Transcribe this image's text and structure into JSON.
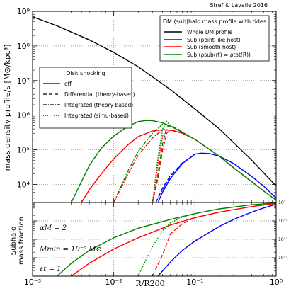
{
  "credit": "Stref & Lavalle 2016",
  "chart_data": {
    "type": "line",
    "top_panel": {
      "ylabel": "mass density profile/s [M⊙/kpc³]",
      "yscale": "log",
      "ylim": [
        3000,
        1000000000
      ],
      "yticks": [
        "10⁴",
        "10⁵",
        "10⁶",
        "10⁷",
        "10⁸",
        "10⁹"
      ],
      "yticks_values": [
        10000,
        100000,
        1000000,
        10000000,
        100000000,
        1000000000
      ],
      "legend_tides": {
        "title": "DM (sub)halo mass profile with tides",
        "entries": [
          {
            "label": "Whole DM profile",
            "color": "#000000"
          },
          {
            "label": "Sub (point-like host)",
            "color": "#0000ff"
          },
          {
            "label": "Sub (smooth host)",
            "color": "#ff0000"
          },
          {
            "label": "Sub (ρsub(rt) = ρtot(R))",
            "color": "#008000"
          }
        ]
      },
      "legend_disk": {
        "title": "Disk shocking",
        "entries": [
          {
            "label": "off",
            "dash": "solid"
          },
          {
            "label": "Differential (theory-based)",
            "dash": "dashed"
          },
          {
            "label": "Integrated (theory-based)",
            "dash": "dashdot"
          },
          {
            "label": "Integrated (simu-based)",
            "dash": "dotted"
          }
        ]
      },
      "series": [
        {
          "name": "Whole DM profile",
          "color": "#000000",
          "dash": "solid",
          "x": [
            0.001,
            0.002,
            0.005,
            0.01,
            0.02,
            0.05,
            0.1,
            0.2,
            0.5,
            1.0
          ],
          "y": [
            700000000,
            380000000,
            150000000,
            65000000,
            25000000,
            5500000,
            1500000,
            400000,
            50000,
            9000
          ]
        },
        {
          "name": "Sub (point-like host)",
          "color": "#0000ff",
          "dash": "solid",
          "x": [
            0.035,
            0.04,
            0.05,
            0.07,
            0.1,
            0.12,
            0.15,
            0.2,
            0.3,
            0.5,
            0.7,
            1.0
          ],
          "y": [
            3000,
            6000,
            15000,
            40000,
            75000,
            80000,
            78000,
            65000,
            40000,
            17000,
            9000,
            4000
          ]
        },
        {
          "name": "Sub (smooth host)",
          "color": "#ff0000",
          "dash": "solid",
          "x": [
            0.004,
            0.005,
            0.007,
            0.01,
            0.015,
            0.02,
            0.03,
            0.04,
            0.05,
            0.07,
            0.1,
            0.2,
            0.3,
            0.5,
            0.7,
            1.0
          ],
          "y": [
            3000,
            7000,
            20000,
            55000,
            140000,
            240000,
            350000,
            380000,
            370000,
            300000,
            200000,
            65000,
            30000,
            12000,
            6500,
            3500
          ]
        },
        {
          "name": "Sub (ρsub(rt) = ρtot(R))",
          "color": "#008000",
          "dash": "solid",
          "x": [
            0.003,
            0.004,
            0.005,
            0.007,
            0.01,
            0.015,
            0.02,
            0.025,
            0.03,
            0.04,
            0.05,
            0.07,
            0.1,
            0.2,
            0.3,
            0.5,
            0.7,
            1.0
          ],
          "y": [
            3000,
            12000,
            35000,
            110000,
            250000,
            480000,
            650000,
            700000,
            690000,
            600000,
            480000,
            320000,
            200000,
            65000,
            30000,
            12000,
            6500,
            3500
          ]
        },
        {
          "name": "green differential",
          "color": "#008000",
          "dash": "dashed",
          "x": [
            0.03,
            0.035,
            0.04,
            0.045,
            0.05,
            0.06,
            0.07
          ],
          "y": [
            3000,
            20000,
            150000,
            450000,
            500000,
            420000,
            330000
          ]
        },
        {
          "name": "green integrated theory",
          "color": "#008000",
          "dash": "dashdot",
          "x": [
            0.01,
            0.015,
            0.02,
            0.03,
            0.04,
            0.05
          ],
          "y": [
            3000,
            25000,
            90000,
            300000,
            550000,
            480000
          ]
        },
        {
          "name": "green integrated simu",
          "color": "#008000",
          "dash": "dotted",
          "x": [
            0.03,
            0.035,
            0.04,
            0.045,
            0.05
          ],
          "y": [
            3000,
            60000,
            400000,
            650000,
            500000
          ]
        },
        {
          "name": "red differential",
          "color": "#ff0000",
          "dash": "dashed",
          "x": [
            0.03,
            0.035,
            0.04,
            0.045,
            0.05,
            0.06,
            0.07
          ],
          "y": [
            3000,
            15000,
            100000,
            300000,
            380000,
            340000,
            300000
          ]
        },
        {
          "name": "red integrated theory",
          "color": "#ff0000",
          "dash": "dashdot",
          "x": [
            0.01,
            0.015,
            0.02,
            0.03,
            0.04,
            0.05
          ],
          "y": [
            3000,
            20000,
            70000,
            220000,
            380000,
            360000
          ]
        },
        {
          "name": "red integrated simu",
          "color": "#ff0000",
          "dash": "dotted",
          "x": [
            0.03,
            0.035,
            0.04,
            0.045,
            0.05
          ],
          "y": [
            3000,
            40000,
            250000,
            380000,
            370000
          ]
        },
        {
          "name": "blue differential",
          "color": "#0000ff",
          "dash": "dashed",
          "x": [
            0.033,
            0.04,
            0.05,
            0.07,
            0.1
          ],
          "y": [
            3000,
            8000,
            18000,
            42000,
            72000
          ]
        },
        {
          "name": "blue integrated simu",
          "color": "#0000ff",
          "dash": "dotted",
          "x": [
            0.033,
            0.04,
            0.05,
            0.07
          ],
          "y": [
            3000,
            7000,
            16000,
            40000
          ]
        }
      ]
    },
    "bottom_panel": {
      "ylabel_line1": "Subhalo",
      "ylabel_line2": "mass fraction",
      "yscale": "log",
      "ylim": [
        0.0001,
        1
      ],
      "yticks": [
        "10⁻³",
        "10⁻²",
        "10⁻¹",
        "10⁰"
      ],
      "yticks_values": [
        0.001,
        0.01,
        0.1,
        1
      ],
      "annotations": [
        "αM = 2",
        "Mmin = 10⁻⁶ M⊙",
        "εt = 1"
      ],
      "series": [
        {
          "name": "Sub (point-like host)",
          "color": "#0000ff",
          "dash": "solid",
          "x": [
            0.035,
            0.05,
            0.07,
            0.1,
            0.2,
            0.3,
            0.5,
            0.7,
            1.0
          ],
          "y": [
            0.0001,
            0.0006,
            0.0025,
            0.008,
            0.05,
            0.12,
            0.3,
            0.5,
            0.8
          ]
        },
        {
          "name": "Sub (smooth host)",
          "color": "#ff0000",
          "dash": "solid",
          "x": [
            0.003,
            0.005,
            0.01,
            0.02,
            0.05,
            0.1,
            0.2,
            0.5,
            1.0
          ],
          "y": [
            0.0001,
            0.0005,
            0.003,
            0.012,
            0.06,
            0.15,
            0.3,
            0.6,
            0.9
          ]
        },
        {
          "name": "Sub (ρsub(rt) = ρtot(R))",
          "color": "#008000",
          "dash": "solid",
          "x": [
            0.002,
            0.003,
            0.005,
            0.01,
            0.02,
            0.05,
            0.1,
            0.2,
            0.5,
            1.0
          ],
          "y": [
            0.0001,
            0.0005,
            0.0025,
            0.012,
            0.04,
            0.12,
            0.25,
            0.45,
            0.75,
            0.95
          ]
        },
        {
          "name": "green dotted",
          "color": "#008000",
          "dash": "dotted",
          "x": [
            0.02,
            0.025,
            0.03,
            0.04,
            0.05,
            0.07,
            0.1
          ],
          "y": [
            0.0001,
            0.0008,
            0.004,
            0.03,
            0.08,
            0.16,
            0.25
          ]
        },
        {
          "name": "red dashed",
          "color": "#ff0000",
          "dash": "dashed",
          "x": [
            0.03,
            0.04,
            0.05,
            0.07,
            0.1,
            0.2
          ],
          "y": [
            0.0001,
            0.0015,
            0.02,
            0.07,
            0.15,
            0.3
          ]
        }
      ]
    },
    "xlabel": "R/R200",
    "xscale": "log",
    "xlim": [
      0.001,
      1
    ],
    "xticks": [
      "10⁻³",
      "10⁻²",
      "10⁻¹",
      "10⁰"
    ],
    "xticks_values": [
      0.001,
      0.01,
      0.1,
      1
    ]
  }
}
